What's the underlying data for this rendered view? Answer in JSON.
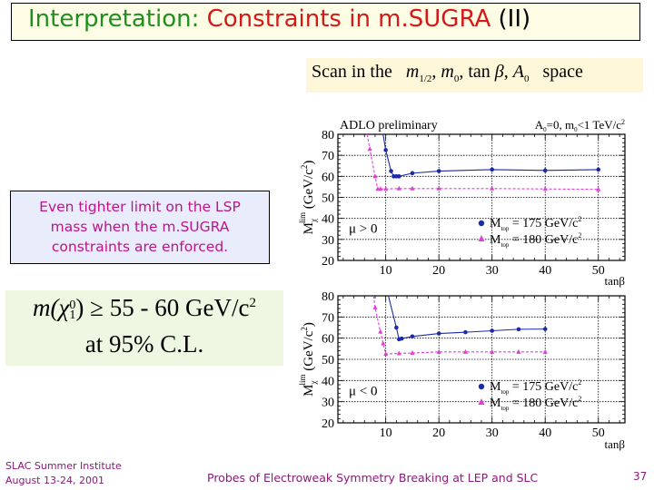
{
  "title": {
    "part1": "Interpretation:",
    "part2": "Constraints in m.SUGRA",
    "part3": "(II)",
    "colors": {
      "part1": "#1f8f1f",
      "part2": "#d41919",
      "part3": "#000000"
    }
  },
  "scan": {
    "prefix": "Scan in the",
    "params": [
      "m",
      "1/2",
      "m",
      "0",
      "tan",
      "β",
      "A",
      "0"
    ],
    "suffix": "space"
  },
  "note": {
    "lines": [
      "Even tighter limit on the LSP",
      "mass when the m.SUGRA",
      "constraints are enforced."
    ],
    "color": "#c0138a"
  },
  "formula": {
    "line1_m": "m(",
    "line1_chi": "χ",
    "line1_sup": "0",
    "line1_sub": "1",
    "line1_rest": ") ≥ 55 - 60 GeV/c",
    "line1_pow": "2",
    "line2": "at 95% C.L."
  },
  "footer": {
    "left_line1": "SLAC Summer Institute",
    "left_line2": "August 13-24, 2001",
    "center": "Probes of Electroweak Symmetry Breaking at LEP and SLC",
    "page": "37"
  },
  "chart_data": [
    {
      "type": "line",
      "title": "ADLO preliminary",
      "subtitle": "A0=0, m0<1 TeV/c²",
      "annotation": "μ > 0",
      "xlabel": "tanβ",
      "ylabel": "M_χ^lim (GeV/c²)",
      "xlim": [
        1,
        55
      ],
      "ylim": [
        20,
        80
      ],
      "xticks": [
        10,
        20,
        30,
        40,
        50
      ],
      "yticks": [
        20,
        30,
        40,
        50,
        60,
        70,
        80
      ],
      "grid": true,
      "legend_position": "lower right",
      "series": [
        {
          "name": "M_top = 175 GeV/c²",
          "color": "#1a2aa8",
          "marker": "circle",
          "linestyle": "solid",
          "x": [
            9.5,
            10,
            11,
            11.5,
            12,
            12.5,
            15,
            20,
            30,
            40,
            50
          ],
          "y": [
            80,
            72.5,
            62.5,
            60,
            60,
            60,
            61.5,
            62.5,
            63.2,
            62.8,
            63.2
          ]
        },
        {
          "name": "M_top = 180 GeV/c²",
          "color": "#e040d8",
          "marker": "triangle",
          "linestyle": "dashed",
          "x": [
            6.5,
            7,
            8,
            8.5,
            9,
            10,
            12.5,
            15,
            20,
            30,
            40,
            50
          ],
          "y": [
            80,
            73,
            60,
            54,
            54,
            54,
            54.2,
            54.2,
            54.2,
            54.2,
            54,
            53.8
          ]
        }
      ]
    },
    {
      "type": "line",
      "title": "",
      "annotation": "μ < 0",
      "xlabel": "tanβ",
      "ylabel": "M_χ^lim (GeV/c²)",
      "xlim": [
        1,
        55
      ],
      "ylim": [
        20,
        80
      ],
      "xticks": [
        10,
        20,
        30,
        40,
        50
      ],
      "yticks": [
        20,
        30,
        40,
        50,
        60,
        70,
        80
      ],
      "grid": true,
      "legend_position": "lower right",
      "series": [
        {
          "name": "M_top = 175 GeV/c²",
          "color": "#1a2aa8",
          "marker": "circle",
          "linestyle": "solid",
          "x": [
            10.5,
            12,
            12.5,
            13,
            15,
            20,
            25,
            30,
            35,
            40
          ],
          "y": [
            80,
            65,
            59.5,
            59.8,
            60.8,
            62.2,
            62.8,
            63.5,
            64.2,
            64.3
          ]
        },
        {
          "name": "M_top = 180 GeV/c²",
          "color": "#e040d8",
          "marker": "triangle",
          "linestyle": "dashed",
          "x": [
            7.7,
            8,
            9,
            9.5,
            10,
            12.5,
            15,
            20,
            25,
            30,
            35,
            40
          ],
          "y": [
            80,
            74.5,
            63,
            57.5,
            52.5,
            52.8,
            53,
            53.5,
            53.5,
            53.5,
            53.5,
            53.5
          ]
        }
      ]
    }
  ]
}
